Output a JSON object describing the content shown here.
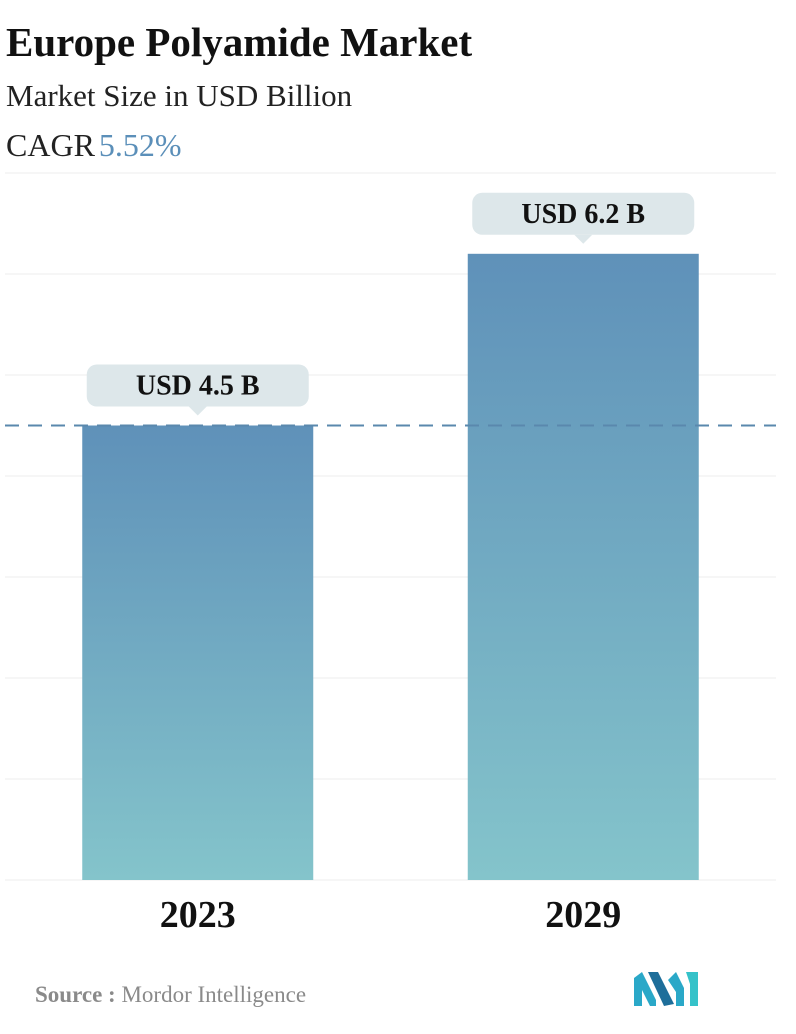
{
  "header": {
    "title": "Europe Polyamide Market",
    "subtitle": "Market Size in USD Billion",
    "cagr_label": "CAGR",
    "cagr_value": "5.52%"
  },
  "chart_data": {
    "type": "bar",
    "categories": [
      "2023",
      "2029"
    ],
    "values": [
      4.5,
      6.2
    ],
    "data_labels": [
      "USD 4.5 B",
      "USD 6.2 B"
    ],
    "ylim": [
      0,
      7
    ],
    "grid": true,
    "reference_line": 4.5,
    "colors": {
      "bar_top": "#5f91b9",
      "bar_bottom": "#84c4cb",
      "label_bg": "#dde7ea",
      "reference_line": "#5a88ad",
      "grid": "#ececec"
    }
  },
  "footer": {
    "source_label": "Source :",
    "source_text": "Mordor Intelligence",
    "logo_icon": "mordor-intelligence-logo-icon"
  }
}
